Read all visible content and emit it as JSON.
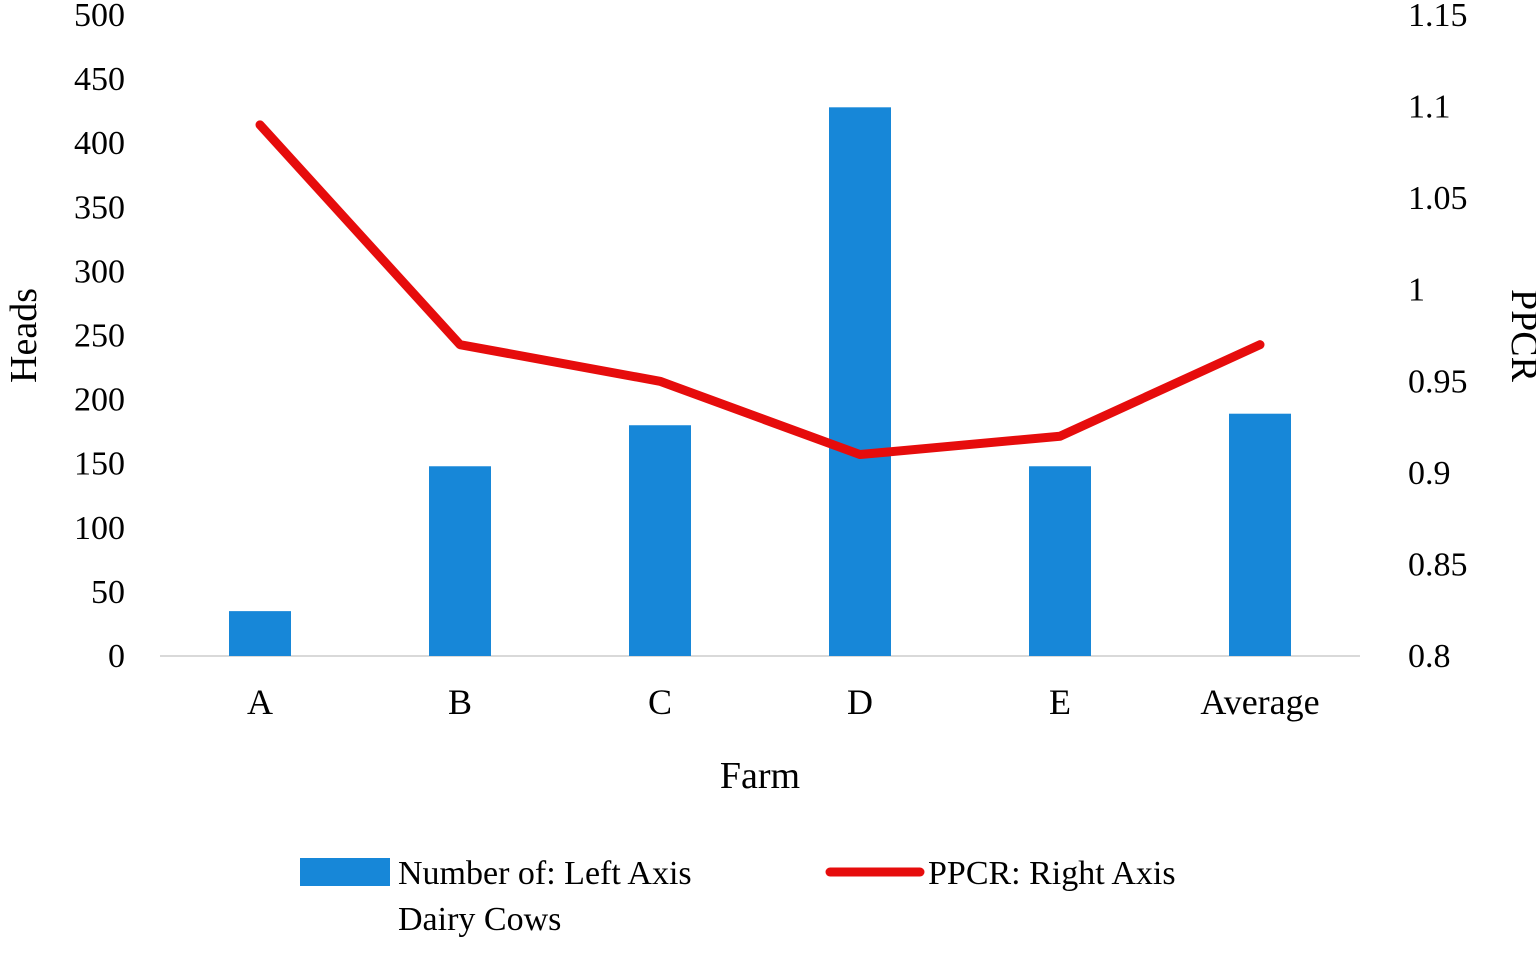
{
  "chart_data": {
    "type": "combo",
    "title": "",
    "categories": [
      "A",
      "B",
      "C",
      "D",
      "E",
      "Average"
    ],
    "series": [
      {
        "name": "Number of Dairy Cows: Left Axis",
        "chart_type": "bar",
        "axis": "left",
        "values": [
          35,
          148,
          180,
          428,
          148,
          189
        ],
        "color": "#1787D8"
      },
      {
        "name": "PPCR: Right Axis",
        "chart_type": "line",
        "axis": "right",
        "values": [
          1.09,
          0.97,
          0.95,
          0.91,
          0.92,
          0.97
        ],
        "color": "#E60C0C"
      }
    ],
    "left_axis": {
      "label": "Heads",
      "min": 0,
      "max": 500,
      "step": 50,
      "tick_labels": [
        "0",
        "50",
        "100",
        "150",
        "200",
        "250",
        "300",
        "350",
        "400",
        "450",
        "500"
      ]
    },
    "right_axis": {
      "label": "PPCR",
      "min": 0.8,
      "max": 1.15,
      "step": 0.05,
      "tick_labels": [
        "0.8",
        "0.85",
        "0.9",
        "0.95",
        "1",
        "1.05",
        "1.1",
        "1.15"
      ]
    },
    "x_axis": {
      "label": "Farm"
    },
    "legend": [
      {
        "swatch": "bar",
        "color": "#1787D8",
        "lines": [
          "Number of: Left Axis",
          "Dairy Cows"
        ]
      },
      {
        "swatch": "line",
        "color": "#E60C0C",
        "lines": [
          "PPCR:  Right Axis"
        ]
      }
    ],
    "grid": "off",
    "baseline_color": "#D9D9D9",
    "legend_position": "bottom"
  }
}
